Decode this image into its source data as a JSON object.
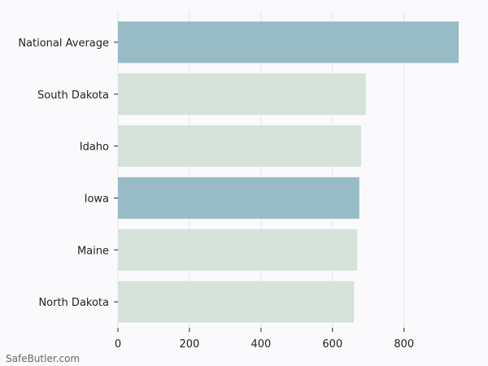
{
  "chart_data": {
    "type": "bar",
    "orientation": "horizontal",
    "categories": [
      "National Average",
      "South Dakota",
      "Idaho",
      "Iowa",
      "Maine",
      "North Dakota"
    ],
    "values": [
      953,
      693,
      680,
      675,
      669,
      660
    ],
    "highlighted": [
      true,
      false,
      false,
      true,
      false,
      false
    ],
    "xlabel": "",
    "ylabel": "",
    "xlim": [
      0,
      953
    ],
    "xticks": [
      0,
      200,
      400,
      600,
      800
    ],
    "grid": "vertical",
    "legend": "none",
    "colors": {
      "highlight": "#97bcc5",
      "default": "#d5e2d9",
      "grid": "#e6e6ea",
      "axis": "#222222",
      "background": "#fafafd"
    }
  },
  "watermark": "SafeButler.com"
}
